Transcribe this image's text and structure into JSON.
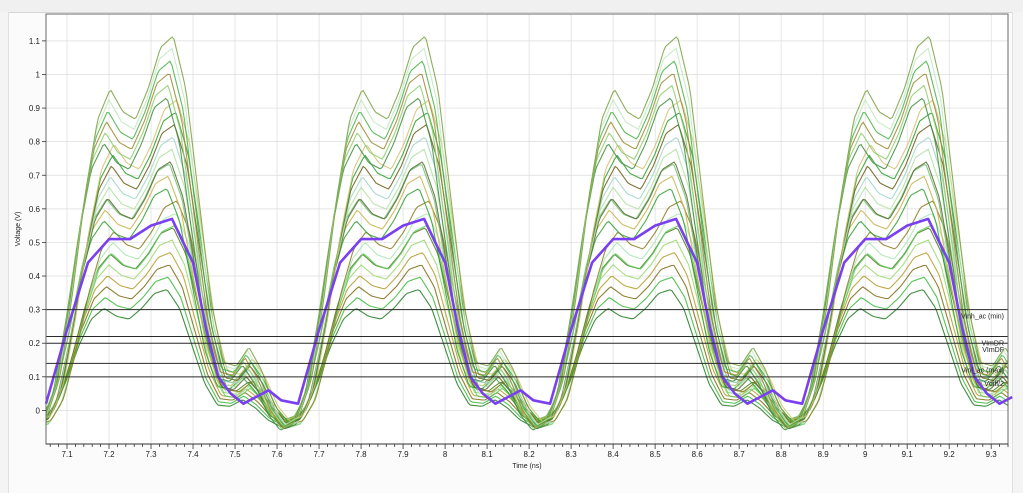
{
  "chart_data": {
    "type": "line",
    "title": "",
    "xlabel": "Time (ns)",
    "ylabel": "Voltage (V)",
    "xlim": [
      7.05,
      9.34
    ],
    "ylim": [
      -0.1,
      1.18
    ],
    "x_ticks": [
      "7.1",
      "7.2",
      "7.3",
      "7.4",
      "7.5",
      "7.6",
      "7.7",
      "7.8",
      "7.9",
      "8",
      "8.1",
      "8.2",
      "8.3",
      "8.4",
      "8.5",
      "8.6",
      "8.7",
      "8.8",
      "8.9",
      "9",
      "9.1",
      "9.2",
      "9.3"
    ],
    "x_tick_values": [
      7.1,
      7.2,
      7.3,
      7.4,
      7.5,
      7.6,
      7.7,
      7.8,
      7.9,
      8.0,
      8.1,
      8.2,
      8.3,
      8.4,
      8.5,
      8.6,
      8.7,
      8.8,
      8.9,
      9.0,
      9.1,
      9.2,
      9.3
    ],
    "y_ticks": [
      "0",
      "0.1",
      "0.2",
      "0.3",
      "0.4",
      "0.5",
      "0.6",
      "0.7",
      "0.8",
      "0.9",
      "1",
      "1.1"
    ],
    "y_tick_values": [
      0,
      0.1,
      0.2,
      0.3,
      0.4,
      0.5,
      0.6,
      0.7,
      0.8,
      0.9,
      1.0,
      1.1
    ],
    "grid": true,
    "period_ns": 0.6,
    "reference_lines": [
      {
        "label": "Vinh_ac (min)",
        "value": 0.3
      },
      {
        "label": "VImDR",
        "value": 0.22
      },
      {
        "label": "VImDF",
        "value": 0.2
      },
      {
        "label": "Vinl_ac (max)",
        "value": 0.14
      },
      {
        "label": "Vdiff/2",
        "value": 0.1
      }
    ],
    "highlight_series": {
      "name": "highlighted waveform",
      "color": "#7a3ff0",
      "period_x": [
        0.0,
        0.05,
        0.1,
        0.15,
        0.2,
        0.25,
        0.3,
        0.35,
        0.38,
        0.41,
        0.44,
        0.47,
        0.5,
        0.53,
        0.56,
        0.6
      ],
      "period_y": [
        0.02,
        0.24,
        0.44,
        0.51,
        0.51,
        0.55,
        0.57,
        0.44,
        0.25,
        0.1,
        0.05,
        0.02,
        0.04,
        0.06,
        0.03,
        0.02
      ],
      "x_start": 7.05
    },
    "waveform_family": {
      "count": 24,
      "peak_range": [
        0.4,
        1.13
      ],
      "colors": [
        "#1f7a1f",
        "#38b838",
        "#7a6a10",
        "#b59a2a",
        "#9ad86a",
        "#4e7a1e",
        "#5fcf5f",
        "#a8e6b0",
        "#8a7a20",
        "#2e9e2e",
        "#c8b04a",
        "#70c070",
        "#556b2f",
        "#b0e0a0",
        "#9cd5c8",
        "#6a5a14",
        "#2aa02a",
        "#d4c070",
        "#3c8c3c",
        "#88cc66",
        "#9a8a30",
        "#46b046",
        "#c0e8c0",
        "#7aa040"
      ]
    }
  }
}
